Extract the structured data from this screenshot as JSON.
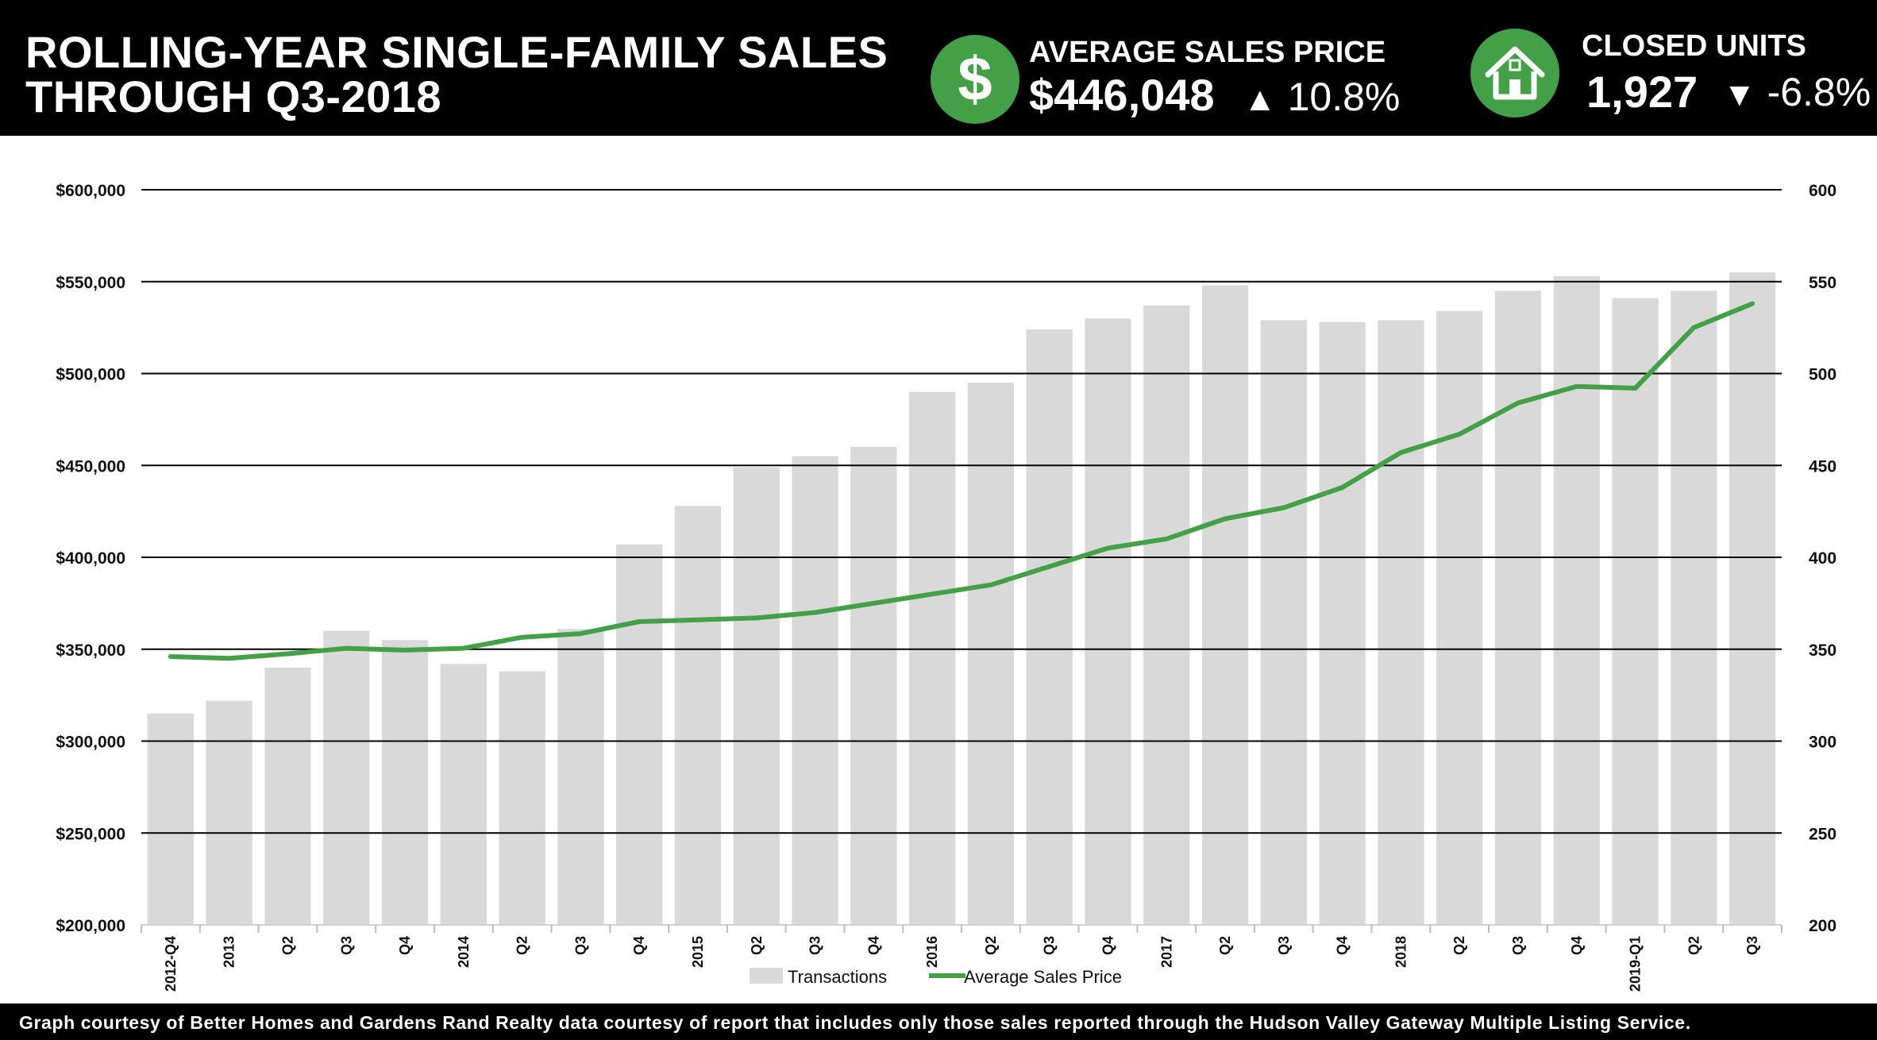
{
  "header": {
    "title_line1": "ROLLING-YEAR SINGLE-FAMILY SALES",
    "title_line2": "THROUGH Q3-2018",
    "avg_price": {
      "label": "AVERAGE SALES PRICE",
      "value": "$446,048",
      "arrow": "▲",
      "change": "10.8%",
      "icon": "dollar-icon"
    },
    "closed_units": {
      "label": "CLOSED UNITS",
      "value": "1,927",
      "arrow": "▼",
      "change": "-6.8%",
      "icon": "house-icon"
    },
    "icon_color": "#43a047"
  },
  "footer": {
    "text": "Graph courtesy of Better Homes and Gardens Rand Realty data courtesy of report that includes only those sales reported through the Hudson Valley Gateway Multiple Listing Service."
  },
  "chart_data": {
    "type": "bar",
    "categories": [
      "2012-Q4",
      "2013",
      "Q2",
      "Q3",
      "Q4",
      "2014",
      "Q2",
      "Q3",
      "Q4",
      "2015",
      "Q2",
      "Q3",
      "Q4",
      "2016",
      "Q2",
      "Q3",
      "Q4",
      "2017",
      "Q2",
      "Q3",
      "Q4",
      "2018",
      "Q2",
      "Q3",
      "Q4",
      "2019-Q1",
      "Q2",
      "Q3"
    ],
    "series": [
      {
        "name": "Transactions",
        "type": "bar",
        "axis": "right",
        "color": "#d9d9d9",
        "values": [
          315,
          322,
          340,
          360,
          355,
          342,
          338,
          361,
          407,
          428,
          449,
          455,
          460,
          490,
          495,
          524,
          530,
          537,
          548,
          529,
          528,
          529,
          534,
          545,
          553,
          541,
          545,
          555
        ]
      },
      {
        "name": "Average Sales Price",
        "type": "line",
        "axis": "left",
        "color": "#43a047",
        "values": [
          346000,
          345000,
          347500,
          350500,
          349500,
          350500,
          356500,
          358500,
          365000,
          366000,
          367000,
          370000,
          375000,
          380000,
          385000,
          395000,
          405000,
          410000,
          421000,
          427000,
          438000,
          457000,
          467000,
          484000,
          493000,
          492000,
          525000,
          538000
        ]
      }
    ],
    "y_left": {
      "min": 200000,
      "max": 600000,
      "step": 50000,
      "ticks": [
        "$200,000",
        "$250,000",
        "$300,000",
        "$350,000",
        "$400,000",
        "$450,000",
        "$500,000",
        "$550,000",
        "$600,000"
      ]
    },
    "y_right": {
      "min": 200,
      "max": 600,
      "step": 50,
      "ticks": [
        "200",
        "250",
        "300",
        "350",
        "400",
        "450",
        "500",
        "550",
        "600"
      ]
    },
    "grid": "horizontal",
    "legend_position": "bottom-center"
  }
}
